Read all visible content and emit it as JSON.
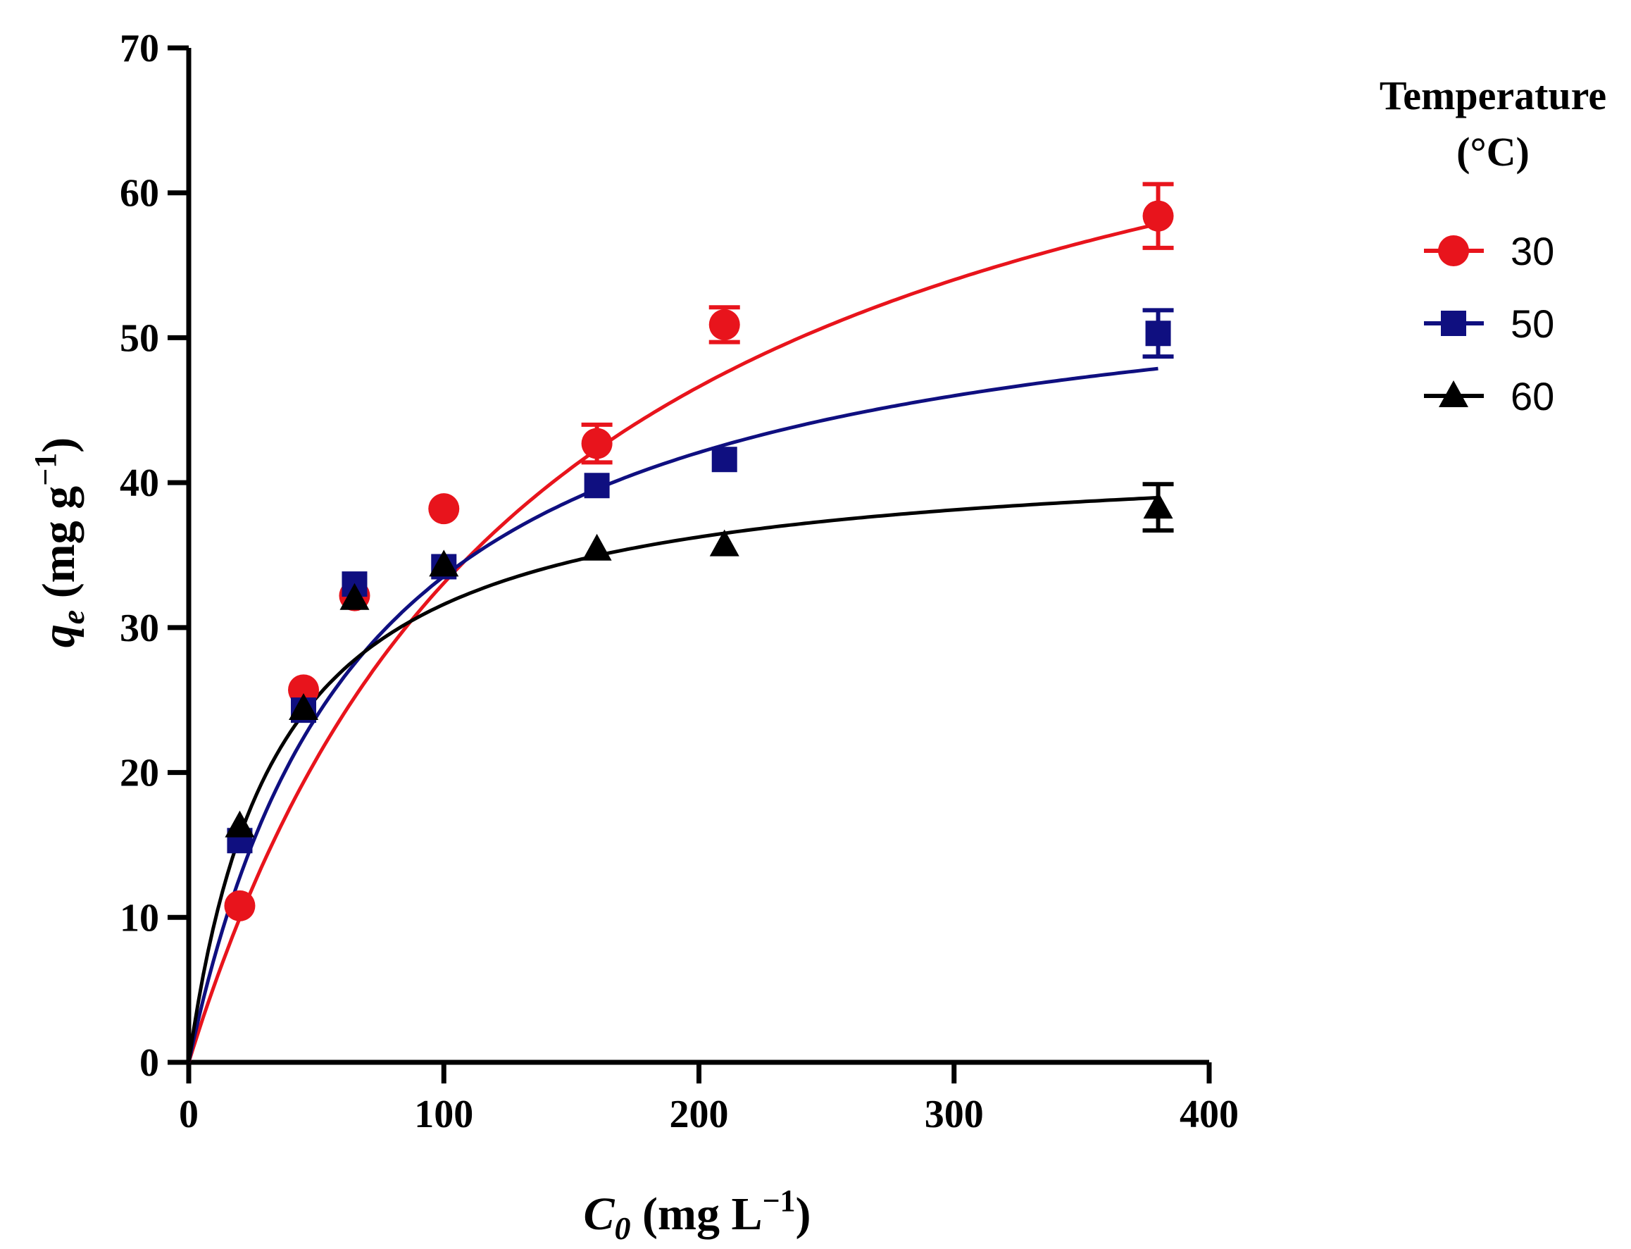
{
  "chart_data": {
    "type": "scatter",
    "xlabel": {
      "main": "C",
      "sub": "0",
      "units": " (mg L",
      "sup": "−1",
      "close": ")"
    },
    "ylabel": {
      "main": "q",
      "sub": "e",
      "units": " (mg g",
      "sup": "−1",
      "close": ")"
    },
    "xlim": [
      0,
      400
    ],
    "ylim": [
      0,
      70
    ],
    "xticks": [
      0,
      100,
      200,
      300,
      400
    ],
    "yticks": [
      0,
      10,
      20,
      30,
      40,
      50,
      60,
      70
    ],
    "legend": {
      "title_line1": "Temperature",
      "title_line2": "(°C)",
      "placement": "right"
    },
    "series": [
      {
        "name": "30",
        "color": "#e8141c",
        "marker": "circle",
        "x": [
          20,
          45,
          65,
          100,
          160,
          210,
          380
        ],
        "y": [
          10.8,
          25.7,
          32.2,
          38.2,
          42.7,
          50.9,
          58.4
        ],
        "err": [
          0,
          0,
          0,
          0,
          1.3,
          1.2,
          2.2
        ],
        "fit": {
          "model": "langmuir",
          "qmax": 79.0,
          "K": 0.0072
        }
      },
      {
        "name": "50",
        "color": "#0f0f80",
        "marker": "square",
        "x": [
          20,
          45,
          65,
          100,
          160,
          210,
          380
        ],
        "y": [
          15.3,
          24.3,
          33.0,
          34.2,
          39.8,
          41.6,
          50.3
        ],
        "err": [
          0,
          0,
          0,
          0,
          0,
          0,
          1.6
        ],
        "fit": {
          "model": "langmuir",
          "qmax": 56.5,
          "K": 0.0146
        }
      },
      {
        "name": "60",
        "color": "#000000",
        "marker": "triangle",
        "x": [
          20,
          45,
          65,
          100,
          160,
          210,
          380
        ],
        "y": [
          16.3,
          24.4,
          32.0,
          34.3,
          35.4,
          35.7,
          38.3
        ],
        "err": [
          0,
          0,
          0,
          0,
          0,
          0,
          1.6
        ],
        "fit": {
          "model": "langmuir",
          "qmax": 42.5,
          "K": 0.029
        }
      }
    ]
  }
}
